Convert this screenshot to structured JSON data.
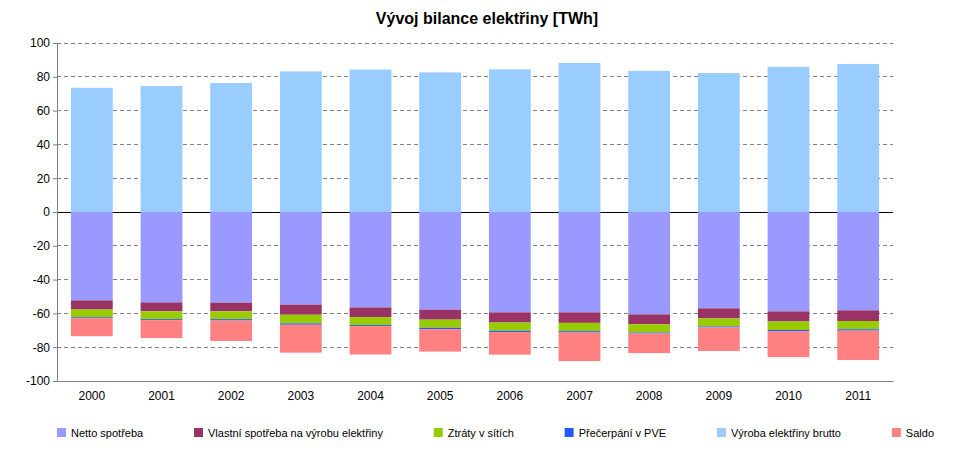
{
  "chart_data": {
    "type": "bar",
    "title": "Vývoj bilance elektřiny [TWh]",
    "stacked": true,
    "grid": true,
    "legend": "bottom",
    "categories": [
      "2000",
      "2001",
      "2002",
      "2003",
      "2004",
      "2005",
      "2006",
      "2007",
      "2008",
      "2009",
      "2010",
      "2011"
    ],
    "series": [
      {
        "name": "Netto spotřeba",
        "color": "#9999ff",
        "values": [
          -52.3,
          -53.5,
          -53.6,
          -54.8,
          -56.5,
          -57.8,
          -59.4,
          -59.4,
          -60.6,
          -57.0,
          -58.8,
          -58.2
        ]
      },
      {
        "name": "Vlastní spotřeba na výrobu elektřiny",
        "color": "#993366",
        "values": [
          -5.4,
          -5.3,
          -5.2,
          -6.0,
          -5.7,
          -5.9,
          -6.0,
          -6.2,
          -5.8,
          -6.0,
          -6.0,
          -6.3
        ]
      },
      {
        "name": "Ztráty v sítích",
        "color": "#99cc00",
        "values": [
          -4.6,
          -4.6,
          -4.6,
          -5.1,
          -4.7,
          -4.8,
          -4.9,
          -4.9,
          -4.9,
          -4.7,
          -5.0,
          -4.9
        ]
      },
      {
        "name": "Přečerpání v PVE",
        "color": "#1f5cff",
        "values": [
          -0.6,
          -0.6,
          -0.8,
          -0.8,
          -0.7,
          -0.8,
          -0.8,
          -0.8,
          -0.6,
          -0.6,
          -0.8,
          -0.8
        ]
      },
      {
        "name": "Výroba elektřiny brutto",
        "color": "#99ccff",
        "values": [
          73.5,
          74.6,
          76.3,
          83.2,
          84.3,
          82.6,
          84.4,
          88.2,
          83.5,
          82.2,
          85.9,
          87.6
        ]
      },
      {
        "name": "Saldo",
        "color": "#ff8080",
        "values": [
          -10.6,
          -10.6,
          -12.1,
          -16.5,
          -16.7,
          -13.3,
          -13.3,
          -16.9,
          -11.6,
          -13.9,
          -15.3,
          -17.4
        ]
      }
    ],
    "ylim": [
      -100,
      100
    ],
    "yticks": [
      -100,
      -80,
      -60,
      -40,
      -20,
      0,
      20,
      40,
      60,
      80,
      100
    ]
  }
}
